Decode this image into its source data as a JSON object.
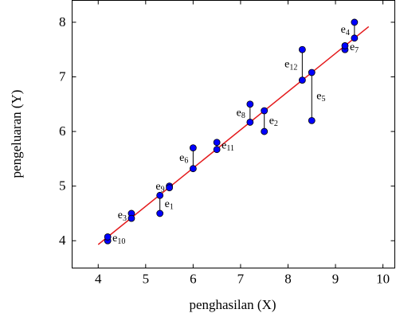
{
  "chart_data": {
    "type": "scatter",
    "xlabel": "penghasilan (X)",
    "ylabel": "pengeluaran (Y)",
    "xlim": [
      3.45,
      10.25
    ],
    "ylim": [
      3.5,
      8.4
    ],
    "xticks": [
      4,
      5,
      6,
      7,
      8,
      9,
      10
    ],
    "yticks": [
      4,
      5,
      6,
      7,
      8
    ],
    "series": [
      {
        "color": "#0000ff",
        "x": [
          5.3,
          7.5,
          4.7,
          9.4,
          8.5,
          6.0,
          9.2,
          7.2,
          5.5,
          4.2,
          6.5,
          8.3
        ],
        "values": [
          4.5,
          6.0,
          4.5,
          8.0,
          6.2,
          5.7,
          7.5,
          6.5,
          5.0,
          4.0,
          5.8,
          7.5
        ],
        "fitted": [
          4.83,
          6.38,
          4.41,
          7.71,
          7.08,
          5.32,
          7.57,
          6.17,
          4.97,
          4.07,
          5.67,
          6.94
        ],
        "residual_labels": [
          "e1",
          "e2",
          "e3",
          "e4",
          "e5",
          "e6",
          "e7",
          "e8",
          "e9",
          "e10",
          "e11",
          "e12"
        ]
      }
    ],
    "fit_line": {
      "color": "#e41a1c",
      "x": [
        4.0,
        9.7
      ],
      "values": [
        3.93,
        7.92
      ]
    }
  }
}
